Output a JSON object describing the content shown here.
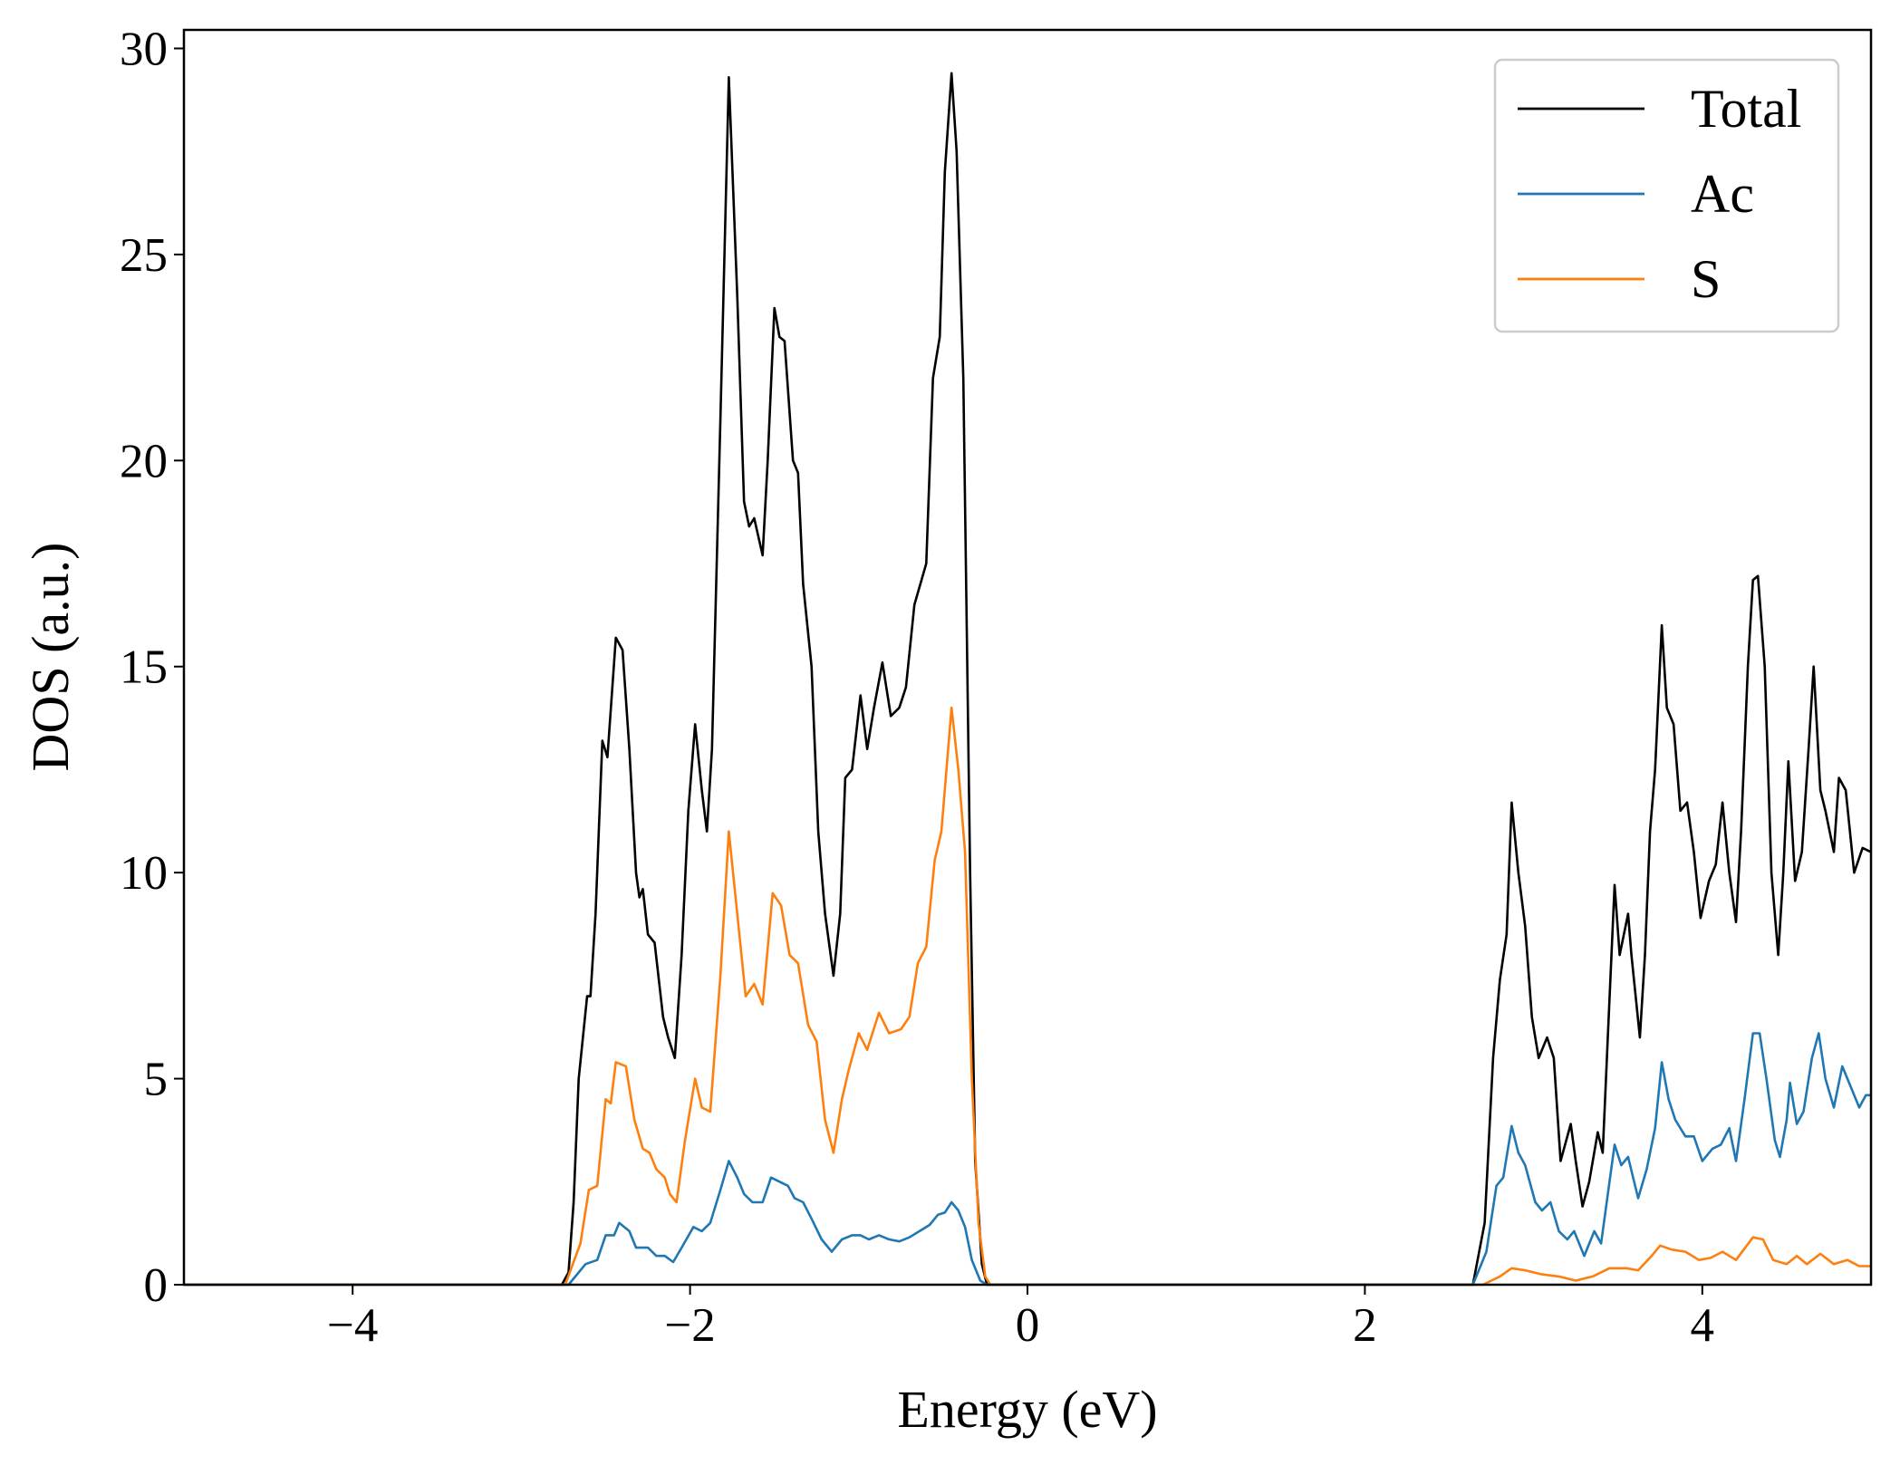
{
  "chart_data": {
    "type": "line",
    "title": "",
    "xlabel": "Energy (eV)",
    "ylabel": "DOS (a.u.)",
    "xlim": [
      -5,
      5
    ],
    "ylim": [
      0,
      30.45
    ],
    "xticks": [
      -4,
      -2,
      0,
      2,
      4
    ],
    "xtick_labels": [
      "−4",
      "−2",
      "0",
      "2",
      "4"
    ],
    "yticks": [
      0,
      5,
      10,
      15,
      20,
      25,
      30
    ],
    "ytick_labels": [
      "0",
      "5",
      "10",
      "15",
      "20",
      "25",
      "30"
    ],
    "grid": false,
    "legend_position": "top-right",
    "series": [
      {
        "name": "Total",
        "color": "#000000",
        "points": [
          [
            -5,
            0
          ],
          [
            -2.76,
            0
          ],
          [
            -2.72,
            0.3
          ],
          [
            -2.69,
            2
          ],
          [
            -2.66,
            5
          ],
          [
            -2.61,
            7.0
          ],
          [
            -2.59,
            7.0
          ],
          [
            -2.56,
            9
          ],
          [
            -2.52,
            13.2
          ],
          [
            -2.49,
            12.8
          ],
          [
            -2.44,
            15.7
          ],
          [
            -2.4,
            15.4
          ],
          [
            -2.36,
            13
          ],
          [
            -2.32,
            10
          ],
          [
            -2.3,
            9.4
          ],
          [
            -2.28,
            9.6
          ],
          [
            -2.25,
            8.5
          ],
          [
            -2.21,
            8.3
          ],
          [
            -2.16,
            6.5
          ],
          [
            -2.13,
            6.0
          ],
          [
            -2.09,
            5.5
          ],
          [
            -2.05,
            8
          ],
          [
            -2.01,
            11.5
          ],
          [
            -1.97,
            13.6
          ],
          [
            -1.93,
            12
          ],
          [
            -1.9,
            11
          ],
          [
            -1.87,
            13
          ],
          [
            -1.82,
            21
          ],
          [
            -1.77,
            29.3
          ],
          [
            -1.72,
            24
          ],
          [
            -1.68,
            19
          ],
          [
            -1.65,
            18.4
          ],
          [
            -1.62,
            18.6
          ],
          [
            -1.57,
            17.7
          ],
          [
            -1.54,
            20
          ],
          [
            -1.5,
            23.7
          ],
          [
            -1.47,
            23
          ],
          [
            -1.44,
            22.9
          ],
          [
            -1.39,
            20
          ],
          [
            -1.36,
            19.7
          ],
          [
            -1.33,
            17
          ],
          [
            -1.28,
            15
          ],
          [
            -1.24,
            11
          ],
          [
            -1.2,
            9
          ],
          [
            -1.15,
            7.5
          ],
          [
            -1.11,
            9
          ],
          [
            -1.08,
            12.3
          ],
          [
            -1.04,
            12.5
          ],
          [
            -0.99,
            14.3
          ],
          [
            -0.95,
            13
          ],
          [
            -0.91,
            14
          ],
          [
            -0.86,
            15.1
          ],
          [
            -0.81,
            13.8
          ],
          [
            -0.76,
            14
          ],
          [
            -0.72,
            14.5
          ],
          [
            -0.67,
            16.5
          ],
          [
            -0.6,
            17.5
          ],
          [
            -0.56,
            22
          ],
          [
            -0.52,
            23
          ],
          [
            -0.49,
            27
          ],
          [
            -0.45,
            29.4
          ],
          [
            -0.42,
            27.5
          ],
          [
            -0.38,
            22
          ],
          [
            -0.34,
            10
          ],
          [
            -0.31,
            3
          ],
          [
            -0.27,
            0.5
          ],
          [
            -0.24,
            0
          ],
          [
            2.64,
            0
          ],
          [
            2.71,
            1.5
          ],
          [
            2.76,
            5.5
          ],
          [
            2.8,
            7.4
          ],
          [
            2.84,
            8.5
          ],
          [
            2.87,
            11.7
          ],
          [
            2.91,
            10
          ],
          [
            2.95,
            8.7
          ],
          [
            2.99,
            6.5
          ],
          [
            3.03,
            5.5
          ],
          [
            3.08,
            6
          ],
          [
            3.12,
            5.5
          ],
          [
            3.16,
            3
          ],
          [
            3.22,
            3.9
          ],
          [
            3.25,
            3
          ],
          [
            3.29,
            1.9
          ],
          [
            3.33,
            2.5
          ],
          [
            3.38,
            3.7
          ],
          [
            3.41,
            3.2
          ],
          [
            3.44,
            6
          ],
          [
            3.48,
            9.7
          ],
          [
            3.51,
            8
          ],
          [
            3.56,
            9
          ],
          [
            3.58,
            8
          ],
          [
            3.63,
            6
          ],
          [
            3.66,
            8
          ],
          [
            3.69,
            11
          ],
          [
            3.72,
            12.5
          ],
          [
            3.76,
            16
          ],
          [
            3.79,
            14
          ],
          [
            3.83,
            13.6
          ],
          [
            3.87,
            11.5
          ],
          [
            3.91,
            11.7
          ],
          [
            3.95,
            10.5
          ],
          [
            3.99,
            8.9
          ],
          [
            4.04,
            9.8
          ],
          [
            4.08,
            10.2
          ],
          [
            4.12,
            11.7
          ],
          [
            4.16,
            10
          ],
          [
            4.2,
            8.8
          ],
          [
            4.23,
            11
          ],
          [
            4.27,
            15
          ],
          [
            4.3,
            17.1
          ],
          [
            4.33,
            17.2
          ],
          [
            4.37,
            15
          ],
          [
            4.41,
            10
          ],
          [
            4.45,
            8
          ],
          [
            4.48,
            10
          ],
          [
            4.51,
            12.7
          ],
          [
            4.55,
            9.8
          ],
          [
            4.59,
            10.5
          ],
          [
            4.63,
            13
          ],
          [
            4.66,
            15
          ],
          [
            4.7,
            12
          ],
          [
            4.73,
            11.5
          ],
          [
            4.78,
            10.5
          ],
          [
            4.81,
            12.3
          ],
          [
            4.85,
            12
          ],
          [
            4.9,
            10
          ],
          [
            4.95,
            10.6
          ],
          [
            5,
            10.5
          ]
        ]
      },
      {
        "name": "Ac",
        "color": "#1f77b4",
        "points": [
          [
            -5,
            0
          ],
          [
            -2.72,
            0
          ],
          [
            -2.62,
            0.5
          ],
          [
            -2.55,
            0.6
          ],
          [
            -2.5,
            1.2
          ],
          [
            -2.45,
            1.2
          ],
          [
            -2.42,
            1.5
          ],
          [
            -2.36,
            1.3
          ],
          [
            -2.32,
            0.9
          ],
          [
            -2.25,
            0.9
          ],
          [
            -2.2,
            0.7
          ],
          [
            -2.15,
            0.7
          ],
          [
            -2.1,
            0.55
          ],
          [
            -2.05,
            0.9
          ],
          [
            -1.98,
            1.4
          ],
          [
            -1.93,
            1.3
          ],
          [
            -1.88,
            1.5
          ],
          [
            -1.82,
            2.3
          ],
          [
            -1.77,
            3.0
          ],
          [
            -1.72,
            2.6
          ],
          [
            -1.68,
            2.2
          ],
          [
            -1.63,
            2.0
          ],
          [
            -1.57,
            2.0
          ],
          [
            -1.52,
            2.6
          ],
          [
            -1.47,
            2.5
          ],
          [
            -1.42,
            2.4
          ],
          [
            -1.38,
            2.1
          ],
          [
            -1.33,
            2.0
          ],
          [
            -1.28,
            1.6
          ],
          [
            -1.22,
            1.1
          ],
          [
            -1.16,
            0.8
          ],
          [
            -1.1,
            1.1
          ],
          [
            -1.04,
            1.2
          ],
          [
            -0.99,
            1.2
          ],
          [
            -0.94,
            1.1
          ],
          [
            -0.88,
            1.2
          ],
          [
            -0.82,
            1.1
          ],
          [
            -0.76,
            1.05
          ],
          [
            -0.7,
            1.15
          ],
          [
            -0.64,
            1.3
          ],
          [
            -0.58,
            1.45
          ],
          [
            -0.53,
            1.7
          ],
          [
            -0.49,
            1.75
          ],
          [
            -0.45,
            2.0
          ],
          [
            -0.41,
            1.8
          ],
          [
            -0.37,
            1.4
          ],
          [
            -0.33,
            0.6
          ],
          [
            -0.28,
            0.1
          ],
          [
            -0.24,
            0
          ],
          [
            2.64,
            0
          ],
          [
            2.72,
            0.8
          ],
          [
            2.78,
            2.4
          ],
          [
            2.82,
            2.6
          ],
          [
            2.87,
            3.85
          ],
          [
            2.91,
            3.2
          ],
          [
            2.95,
            2.9
          ],
          [
            3.01,
            2.0
          ],
          [
            3.05,
            1.8
          ],
          [
            3.1,
            2.0
          ],
          [
            3.15,
            1.3
          ],
          [
            3.2,
            1.1
          ],
          [
            3.24,
            1.3
          ],
          [
            3.3,
            0.7
          ],
          [
            3.36,
            1.3
          ],
          [
            3.4,
            1.0
          ],
          [
            3.45,
            2.5
          ],
          [
            3.48,
            3.4
          ],
          [
            3.52,
            2.9
          ],
          [
            3.56,
            3.1
          ],
          [
            3.62,
            2.1
          ],
          [
            3.67,
            2.8
          ],
          [
            3.72,
            3.8
          ],
          [
            3.76,
            5.4
          ],
          [
            3.8,
            4.5
          ],
          [
            3.84,
            4.0
          ],
          [
            3.9,
            3.6
          ],
          [
            3.95,
            3.6
          ],
          [
            4.0,
            3.0
          ],
          [
            4.06,
            3.3
          ],
          [
            4.11,
            3.4
          ],
          [
            4.16,
            3.8
          ],
          [
            4.2,
            3.0
          ],
          [
            4.25,
            4.5
          ],
          [
            4.3,
            6.1
          ],
          [
            4.34,
            6.1
          ],
          [
            4.38,
            5.0
          ],
          [
            4.43,
            3.5
          ],
          [
            4.46,
            3.1
          ],
          [
            4.5,
            4.0
          ],
          [
            4.52,
            4.9
          ],
          [
            4.56,
            3.9
          ],
          [
            4.6,
            4.2
          ],
          [
            4.65,
            5.5
          ],
          [
            4.69,
            6.1
          ],
          [
            4.73,
            5.0
          ],
          [
            4.78,
            4.3
          ],
          [
            4.83,
            5.3
          ],
          [
            4.88,
            4.8
          ],
          [
            4.93,
            4.3
          ],
          [
            4.97,
            4.6
          ],
          [
            5,
            4.6
          ]
        ]
      },
      {
        "name": "S",
        "color": "#ff7f0e",
        "points": [
          [
            -5,
            0
          ],
          [
            -2.74,
            0
          ],
          [
            -2.65,
            1.0
          ],
          [
            -2.6,
            2.3
          ],
          [
            -2.55,
            2.4
          ],
          [
            -2.5,
            4.5
          ],
          [
            -2.47,
            4.4
          ],
          [
            -2.44,
            5.4
          ],
          [
            -2.38,
            5.3
          ],
          [
            -2.33,
            4.0
          ],
          [
            -2.28,
            3.3
          ],
          [
            -2.24,
            3.2
          ],
          [
            -2.2,
            2.8
          ],
          [
            -2.15,
            2.6
          ],
          [
            -2.12,
            2.2
          ],
          [
            -2.08,
            2.0
          ],
          [
            -2.03,
            3.5
          ],
          [
            -1.97,
            5.0
          ],
          [
            -1.93,
            4.3
          ],
          [
            -1.88,
            4.2
          ],
          [
            -1.82,
            7.5
          ],
          [
            -1.77,
            11.0
          ],
          [
            -1.72,
            9.0
          ],
          [
            -1.67,
            7.0
          ],
          [
            -1.62,
            7.3
          ],
          [
            -1.57,
            6.8
          ],
          [
            -1.51,
            9.5
          ],
          [
            -1.46,
            9.2
          ],
          [
            -1.41,
            8.0
          ],
          [
            -1.36,
            7.8
          ],
          [
            -1.3,
            6.3
          ],
          [
            -1.25,
            5.9
          ],
          [
            -1.2,
            4.0
          ],
          [
            -1.15,
            3.2
          ],
          [
            -1.1,
            4.5
          ],
          [
            -1.06,
            5.2
          ],
          [
            -1.0,
            6.1
          ],
          [
            -0.95,
            5.7
          ],
          [
            -0.88,
            6.6
          ],
          [
            -0.82,
            6.1
          ],
          [
            -0.75,
            6.2
          ],
          [
            -0.7,
            6.5
          ],
          [
            -0.65,
            7.8
          ],
          [
            -0.6,
            8.2
          ],
          [
            -0.55,
            10.3
          ],
          [
            -0.51,
            11.0
          ],
          [
            -0.48,
            12.5
          ],
          [
            -0.45,
            14.0
          ],
          [
            -0.41,
            12.5
          ],
          [
            -0.37,
            10.5
          ],
          [
            -0.33,
            5.0
          ],
          [
            -0.29,
            1.5
          ],
          [
            -0.25,
            0.2
          ],
          [
            -0.22,
            0
          ],
          [
            2.7,
            0
          ],
          [
            2.8,
            0.2
          ],
          [
            2.87,
            0.4
          ],
          [
            2.95,
            0.35
          ],
          [
            3.05,
            0.25
          ],
          [
            3.15,
            0.2
          ],
          [
            3.25,
            0.1
          ],
          [
            3.35,
            0.2
          ],
          [
            3.45,
            0.4
          ],
          [
            3.55,
            0.4
          ],
          [
            3.62,
            0.35
          ],
          [
            3.7,
            0.7
          ],
          [
            3.75,
            0.95
          ],
          [
            3.82,
            0.85
          ],
          [
            3.9,
            0.8
          ],
          [
            3.98,
            0.6
          ],
          [
            4.05,
            0.65
          ],
          [
            4.12,
            0.8
          ],
          [
            4.2,
            0.6
          ],
          [
            4.3,
            1.15
          ],
          [
            4.36,
            1.1
          ],
          [
            4.42,
            0.6
          ],
          [
            4.5,
            0.5
          ],
          [
            4.56,
            0.7
          ],
          [
            4.62,
            0.5
          ],
          [
            4.7,
            0.75
          ],
          [
            4.78,
            0.5
          ],
          [
            4.86,
            0.6
          ],
          [
            4.93,
            0.45
          ],
          [
            5,
            0.45
          ]
        ]
      }
    ]
  }
}
